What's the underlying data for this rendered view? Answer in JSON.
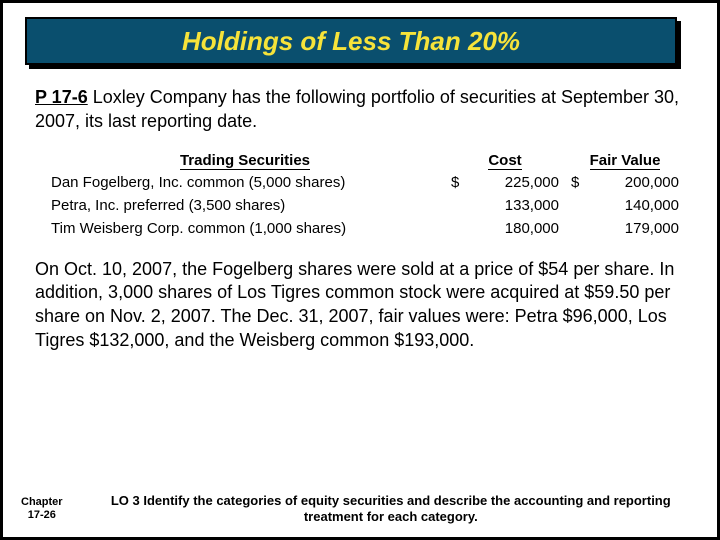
{
  "title": "Holdings of Less Than 20%",
  "problem_ref": "P 17-6",
  "intro_rest": " Loxley Company has the following portfolio of securities at September 30, 2007, its last reporting date.",
  "table": {
    "headers": {
      "sec": "Trading Securities",
      "cost": "Cost",
      "fv": "Fair Value"
    },
    "currency": "$",
    "rows": [
      {
        "desc": "Dan Fogelberg, Inc. common (5,000 shares)",
        "cost": "225,000",
        "fv": "200,000"
      },
      {
        "desc": "Petra, Inc. preferred (3,500 shares)",
        "cost": "133,000",
        "fv": "140,000"
      },
      {
        "desc": "Tim Weisberg Corp. common (1,000 shares)",
        "cost": "180,000",
        "fv": "179,000"
      }
    ]
  },
  "body": "On Oct. 10, 2007, the Fogelberg shares were sold at a price of $54 per share. In addition, 3,000 shares of Los Tigres common stock were acquired at $59.50 per share on Nov. 2, 2007. The Dec. 31, 2007, fair values were: Petra $96,000, Los Tigres $132,000, and the Weisberg common $193,000.",
  "footer": {
    "chapter_line1": "Chapter",
    "chapter_line2": "17-26",
    "lo": "LO 3 Identify the categories of equity securities and describe the accounting and reporting treatment for each category."
  },
  "colors": {
    "title_bg": "#0a4f6e",
    "title_fg": "#f6e33a",
    "border": "#000000",
    "page_bg": "#ffffff"
  }
}
